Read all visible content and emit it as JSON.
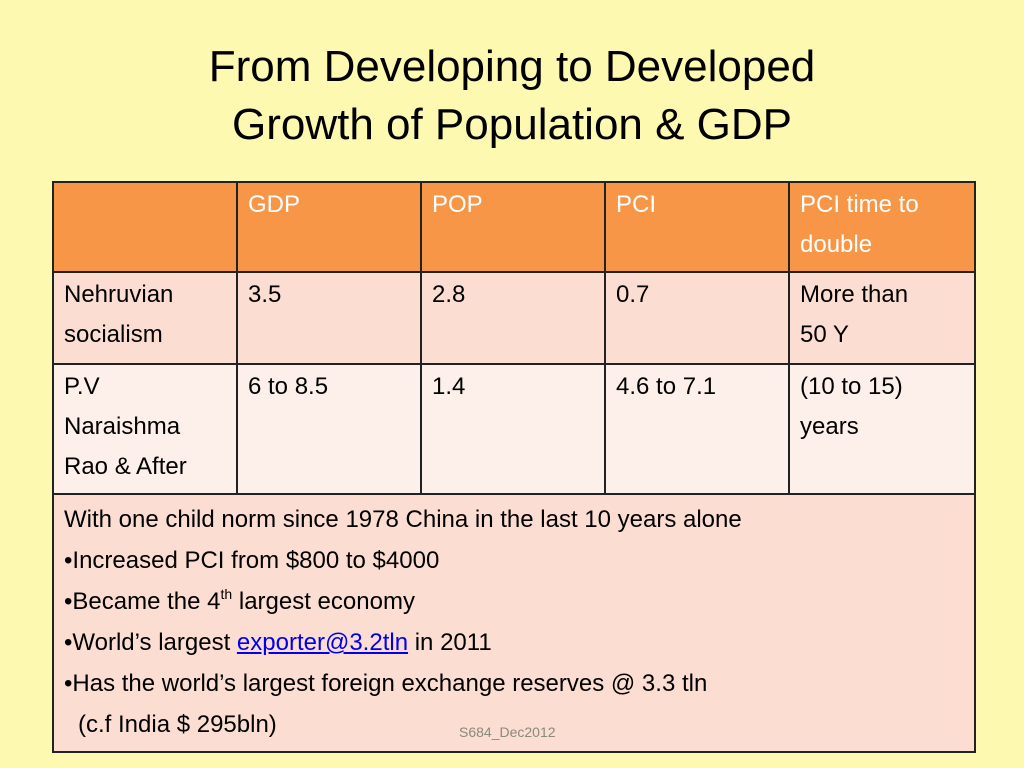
{
  "title": {
    "line1": "From Developing to Developed",
    "line2": "Growth of  Population & GDP"
  },
  "table": {
    "headers": [
      "",
      "GDP",
      "POP",
      "PCI",
      "PCI time to double"
    ],
    "rows": [
      {
        "label_lines": [
          "Nehruvian",
          "socialism"
        ],
        "gdp": "3.5",
        "pop": "2.8",
        "pci": "0.7",
        "double_lines": [
          "More than",
          "50 Y"
        ]
      },
      {
        "label_lines": [
          "P.V",
          "Naraishma",
          "Rao & After"
        ],
        "gdp": "6 to 8.5",
        "pop": "1.4",
        "pci": "4.6 to 7.1",
        "double_lines": [
          "(10 to 15)",
          "years"
        ]
      }
    ]
  },
  "notes": {
    "intro": "With one child norm since 1978 China in the  last 10 years alone",
    "bullet1": "•Increased PCI from $800 to $4000",
    "bullet2_pre": "•Became the  4",
    "bullet2_sup": "th",
    "bullet2_post": " largest economy",
    "bullet3_pre": "•World’s largest ",
    "bullet3_link": "exporter@3.2tln",
    "bullet3_post": " in 2011",
    "bullet4": "•Has the  world’s largest  foreign exchange reserves @ 3.3 tln",
    "bullet4_cont": "(c.f India $ 295bln)"
  },
  "footer": "S684_Dec2012"
}
